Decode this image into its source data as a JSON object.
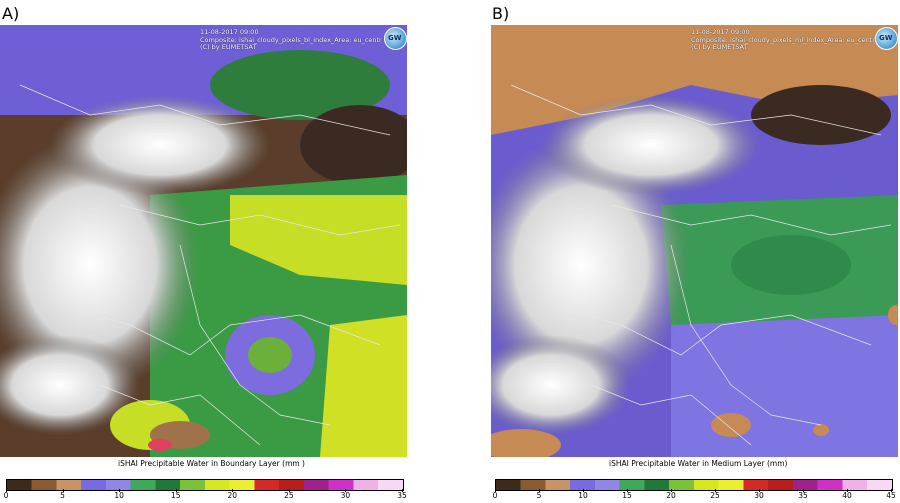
{
  "panels": [
    {
      "letter": "A)",
      "header": {
        "line1": "11-08-2017 09:00",
        "line2": "Composite: ishai_cloudy_pixels_bl_index_Area: eu_centr",
        "line3": "(C) by EUMETSAT"
      },
      "logo_text": "GW",
      "caption": "iSHAI Precipitable Water in Boundary Layer (mm )",
      "colorbar": {
        "min": 0,
        "max": 35,
        "ticks": [
          "0",
          "5",
          "10",
          "15",
          "20",
          "25",
          "30",
          "35"
        ],
        "colors": [
          "#3d2a1a",
          "#8a5a32",
          "#c9936a",
          "#7a6ae0",
          "#8f86e6",
          "#3fa85a",
          "#1f7a3a",
          "#7bc23a",
          "#d8e81e",
          "#ecee30",
          "#d62828",
          "#b81c1c",
          "#a0208c",
          "#d030c8",
          "#f0b0e8",
          "#f8d8f4"
        ]
      },
      "icon": "eumetsat-gw-logo-icon"
    },
    {
      "letter": "B)",
      "header": {
        "line1": "11-08-2017 09:00",
        "line2": "Composite: ishai_cloudy_pixels_ml_index_Area: eu_centr",
        "line3": "(C) by EUMETSAT"
      },
      "logo_text": "GW",
      "caption": "iSHAI Precipitable Water in Medium Layer (mm)",
      "colorbar": {
        "min": 0,
        "max": 45,
        "ticks": [
          "0",
          "5",
          "10",
          "15",
          "20",
          "25",
          "30",
          "35",
          "40",
          "45"
        ],
        "colors": [
          "#3d2a1a",
          "#8a5a32",
          "#c9936a",
          "#7a6ae0",
          "#8f86e6",
          "#3fa85a",
          "#1f7a3a",
          "#7bc23a",
          "#d8e81e",
          "#ecee30",
          "#d62828",
          "#b81c1c",
          "#a0208c",
          "#d030c8",
          "#f0b0e8",
          "#f8d8f4"
        ]
      },
      "icon": "eumetsat-gw-logo-icon"
    }
  ]
}
